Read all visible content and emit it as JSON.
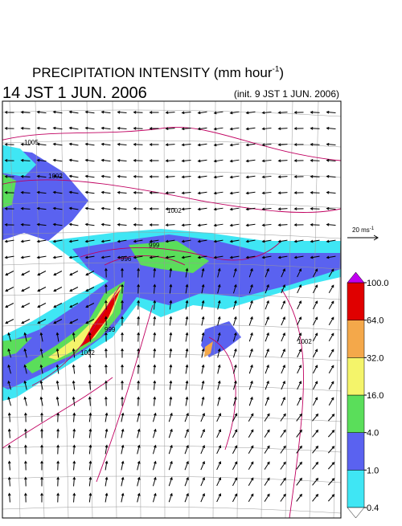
{
  "header": {
    "title": "PRECIPITATION INTENSITY (mm hour",
    "title_sup": "-1",
    "title_end": ")",
    "valid_time": "14 JST 1 JUN. 2006",
    "init_time": "(init. 9 JST 1 JUN. 2006)"
  },
  "wind_reference": {
    "label": "20 ms",
    "label_sup": "-1"
  },
  "isobar_labels": [
    "1005",
    "1002",
    "1002",
    "999",
    "996",
    "999",
    "1002",
    "1002"
  ],
  "colorbar": {
    "levels": [
      0.4,
      1,
      4,
      16,
      32,
      64,
      100
    ],
    "value_labels": [
      "0.4",
      "1.0",
      "4.0",
      "16.0",
      "32.0",
      "64.0",
      "100.0"
    ],
    "colors": [
      "#3fe6f4",
      "#5a62f0",
      "#5ade5a",
      "#f4f46a",
      "#f4a84a",
      "#e00000"
    ],
    "over_color": "#c000f0",
    "under_color": "#ffffff"
  }
}
